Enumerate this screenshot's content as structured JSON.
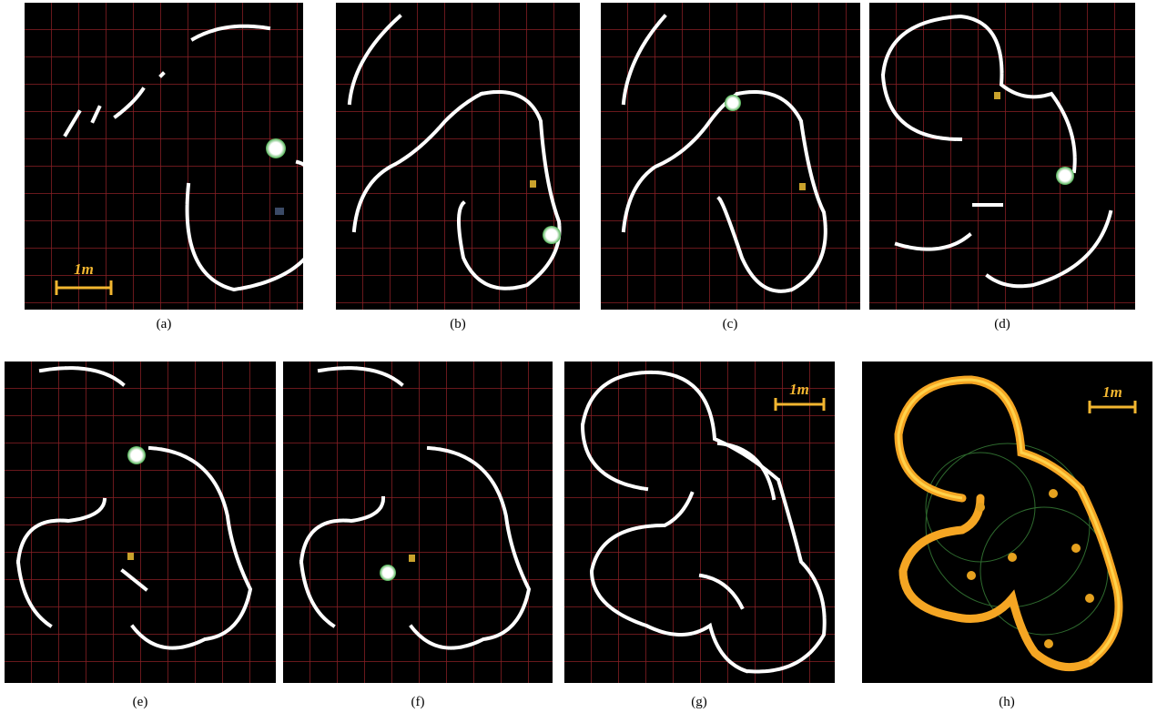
{
  "panels": [
    {
      "caption": "(a)",
      "scale_label": "1m"
    },
    {
      "caption": "(b)"
    },
    {
      "caption": "(c)"
    },
    {
      "caption": "(d)"
    },
    {
      "caption": "(e)"
    },
    {
      "caption": "(f)"
    },
    {
      "caption": "(g)",
      "scale_label": "1m"
    },
    {
      "caption": "(h)",
      "scale_label": "1m"
    }
  ]
}
